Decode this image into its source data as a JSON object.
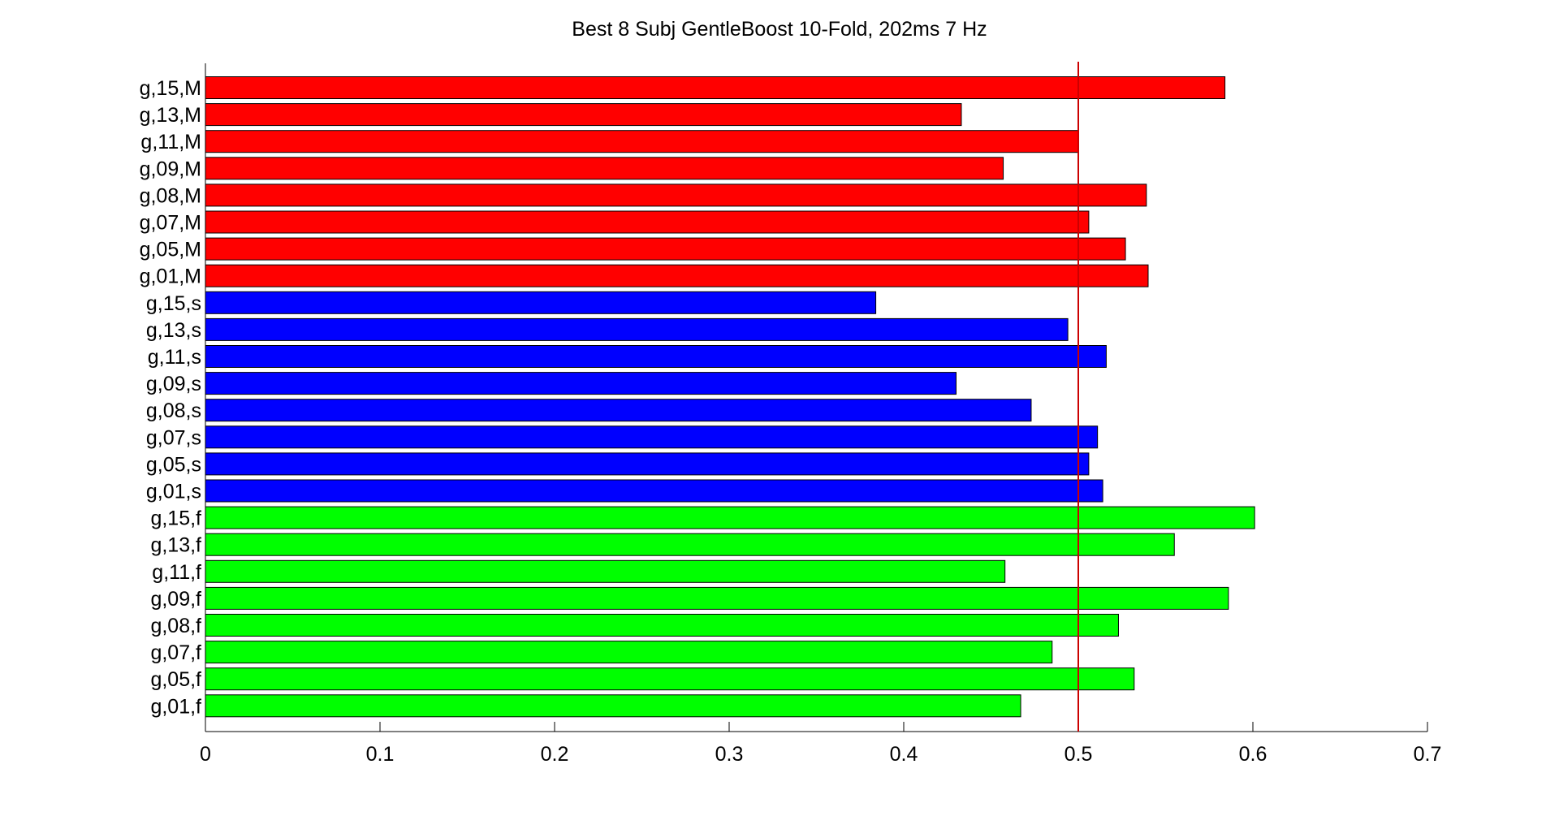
{
  "chart_data": {
    "type": "bar",
    "orientation": "horizontal",
    "title": "Best 8 Subj GentleBoost 10-Fold, 202ms 7 Hz",
    "xlabel": "",
    "ylabel": "",
    "xlim": [
      0,
      0.7
    ],
    "xticks": [
      "0",
      "0.1",
      "0.2",
      "0.3",
      "0.4",
      "0.5",
      "0.6",
      "0.7"
    ],
    "reference_line": {
      "x": 0.5,
      "color": "#cc0000"
    },
    "grid": false,
    "legend": "none",
    "categories": [
      "g,15,M",
      "g,13,M",
      "g,11,M",
      "g,09,M",
      "g,08,M",
      "g,07,M",
      "g,05,M",
      "g,01,M",
      "g,15,s",
      "g,13,s",
      "g,11,s",
      "g,09,s",
      "g,08,s",
      "g,07,s",
      "g,05,s",
      "g,01,s",
      "g,15,f",
      "g,13,f",
      "g,11,f",
      "g,09,f",
      "g,08,f",
      "g,07,f",
      "g,05,f",
      "g,01,f"
    ],
    "values": [
      0.584,
      0.433,
      0.5,
      0.457,
      0.539,
      0.506,
      0.527,
      0.54,
      0.384,
      0.494,
      0.516,
      0.43,
      0.473,
      0.511,
      0.506,
      0.514,
      0.601,
      0.555,
      0.458,
      0.586,
      0.523,
      0.485,
      0.532,
      0.467
    ],
    "bar_colors": [
      "#ff0000",
      "#ff0000",
      "#ff0000",
      "#ff0000",
      "#ff0000",
      "#ff0000",
      "#ff0000",
      "#ff0000",
      "#0000ff",
      "#0000ff",
      "#0000ff",
      "#0000ff",
      "#0000ff",
      "#0000ff",
      "#0000ff",
      "#0000ff",
      "#00ff00",
      "#00ff00",
      "#00ff00",
      "#00ff00",
      "#00ff00",
      "#00ff00",
      "#00ff00",
      "#00ff00"
    ]
  }
}
